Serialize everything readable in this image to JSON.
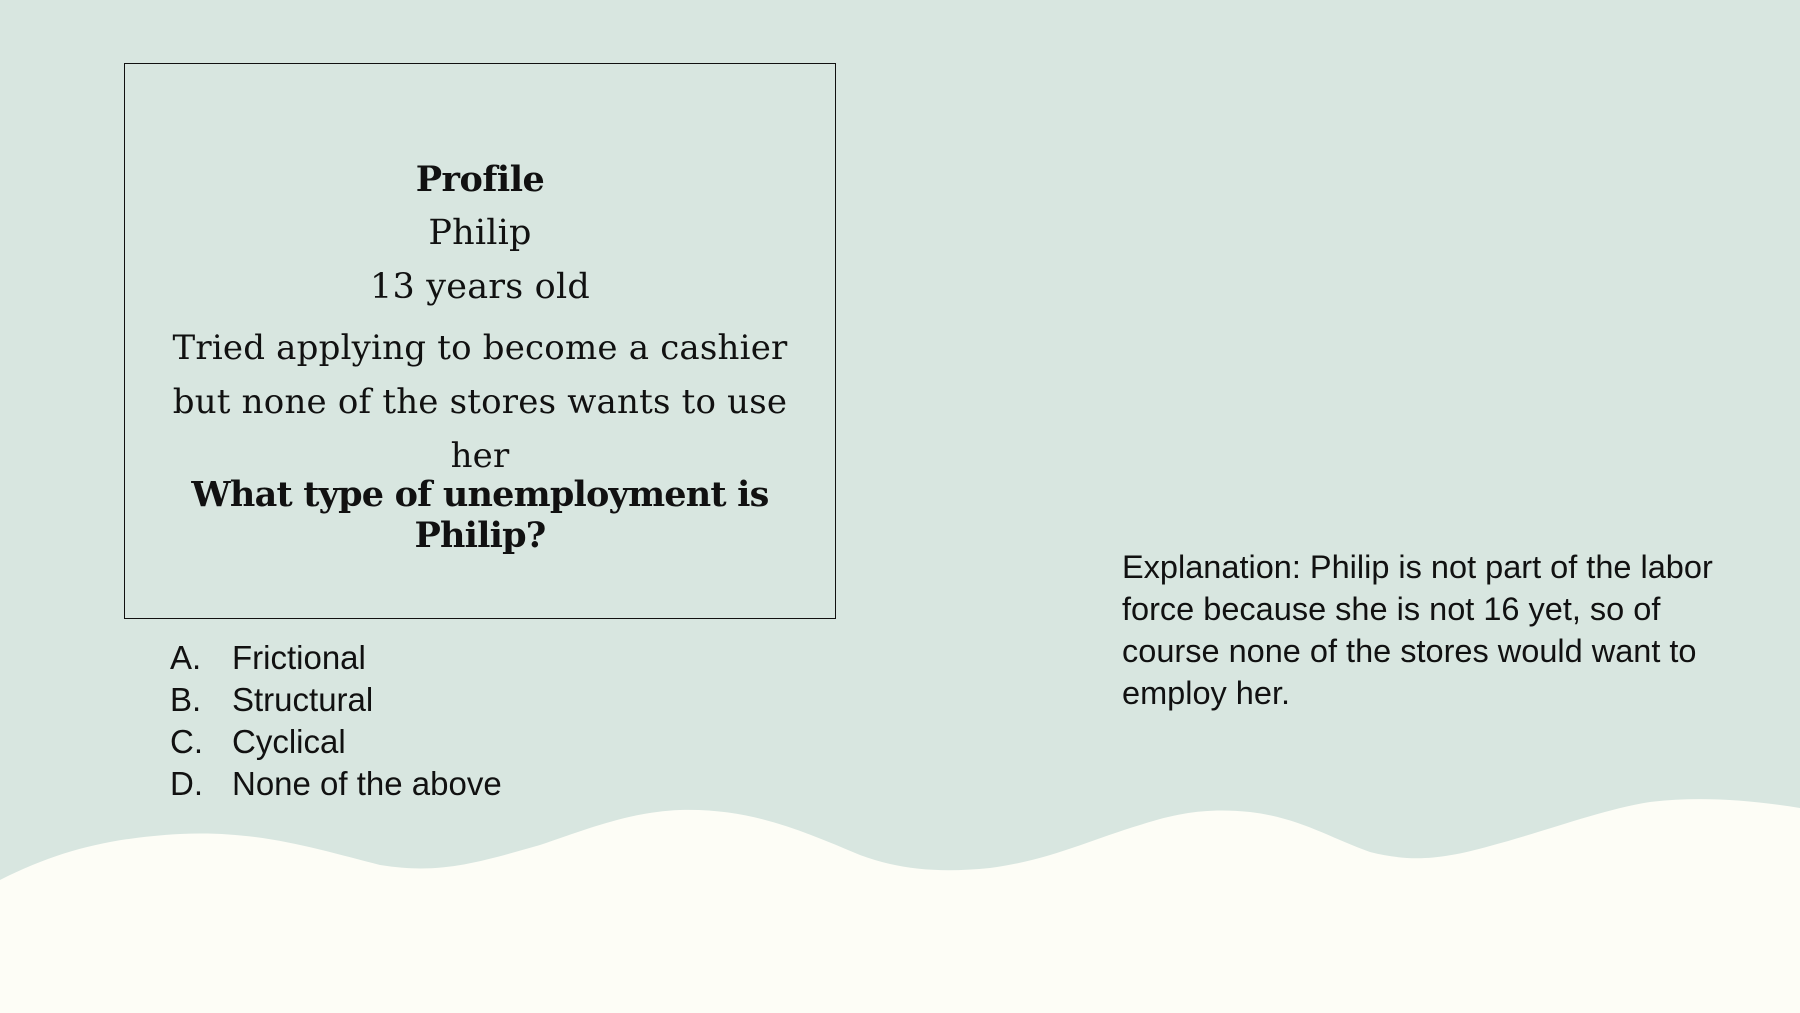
{
  "profile": {
    "title": "Profile",
    "name": "Philip",
    "age": "13 years old",
    "description": "Tried applying to become a cashier but none of the stores wants to use her",
    "question": "What type of unemployment is Philip?"
  },
  "options": [
    {
      "letter": "A.",
      "text": "Frictional"
    },
    {
      "letter": "B.",
      "text": "Structural"
    },
    {
      "letter": "C.",
      "text": "Cyclical"
    },
    {
      "letter": "D.",
      "text": "None of the above"
    }
  ],
  "explanation": "Explanation: Philip is not part of the labor force because she is not 16 yet, so of course none of the stores would want to employ her.",
  "colors": {
    "background": "#d8e6e0",
    "wave": "#fdfdf6",
    "text": "#111111"
  }
}
